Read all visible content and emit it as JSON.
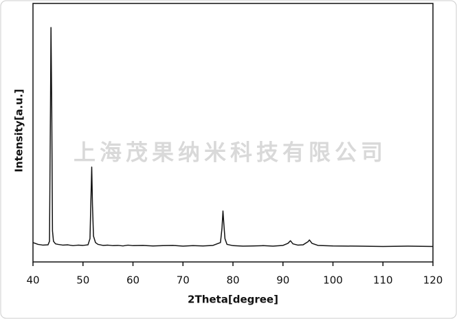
{
  "chart_data": {
    "type": "line",
    "watermark": "上海茂果纳米科技有限公司",
    "x_label": "2Theta[degree]",
    "y_label": "Intensity[a.u.]",
    "x": [
      40,
      41,
      42,
      43,
      43.3,
      43.5,
      43.6,
      43.75,
      43.9,
      44.1,
      44.5,
      45,
      46,
      47,
      48,
      49,
      50,
      51,
      51.4,
      51.6,
      51.75,
      51.9,
      52.1,
      52.5,
      53,
      54,
      55,
      56,
      57,
      58,
      59,
      60,
      62,
      64,
      66,
      68,
      70,
      72,
      74,
      76,
      77.5,
      77.8,
      78,
      78.2,
      78.4,
      78.8,
      80,
      82,
      84,
      86,
      88,
      90,
      91,
      91.5,
      92,
      93,
      94,
      95,
      95.3,
      95.8,
      97,
      100,
      105,
      110,
      115,
      120
    ],
    "series": [
      {
        "color": "#111111",
        "values": [
          7.5,
          6.8,
          6.5,
          6.6,
          8,
          60,
          90.7,
          60,
          12,
          8,
          7,
          6.8,
          6.5,
          6.6,
          6.3,
          6.5,
          6.4,
          6.6,
          9,
          25,
          36.7,
          22,
          10,
          7.5,
          6.8,
          6.4,
          6.5,
          6.3,
          6.4,
          6.2,
          6.5,
          6.3,
          6.4,
          6.2,
          6.3,
          6.4,
          6.1,
          6.3,
          6.2,
          6.4,
          7.5,
          13,
          19.7,
          14,
          9,
          6.8,
          6.3,
          6.1,
          6.2,
          6.3,
          6.1,
          6.4,
          7.2,
          8.2,
          7,
          6.5,
          6.6,
          7.8,
          8.5,
          7.2,
          6.4,
          6.2,
          6.1,
          6,
          6.1,
          6
        ]
      }
    ],
    "xlim": [
      40,
      120
    ],
    "xticks": [
      40,
      50,
      60,
      70,
      80,
      90,
      100,
      110,
      120
    ],
    "ylim": [
      0,
      100
    ]
  }
}
